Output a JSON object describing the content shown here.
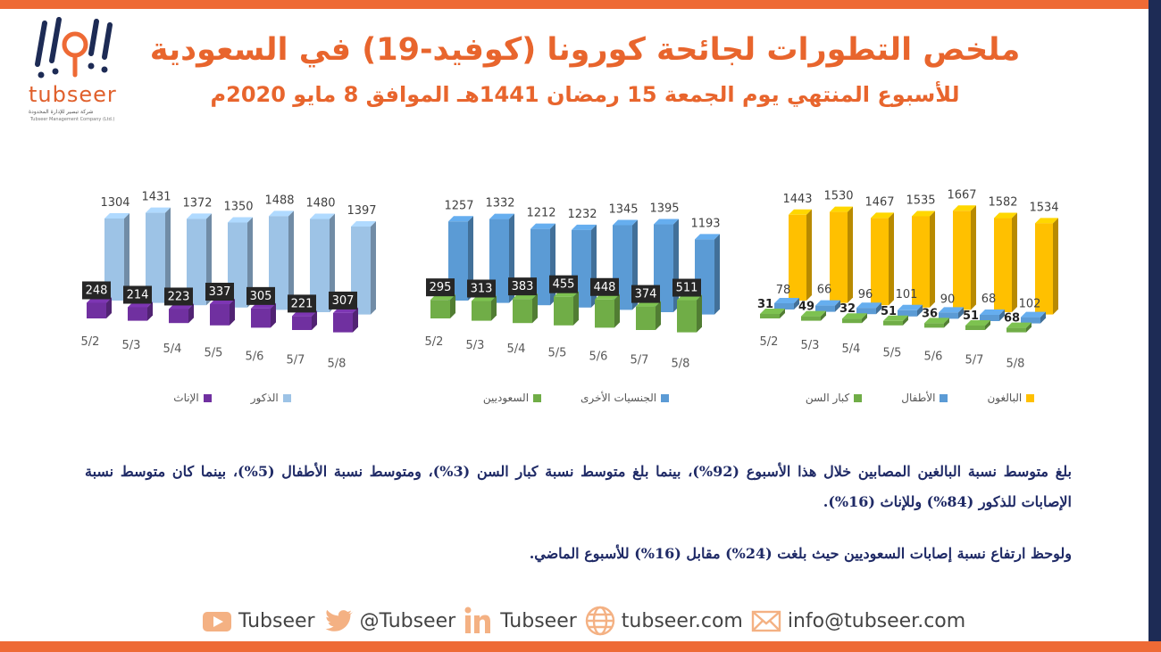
{
  "header": {
    "title": "ملخص التطورات لجائحة كورونا (كوفيد-19) في السعودية",
    "subtitle": "للأسبوع المنتهي يوم الجمعة 15 رمضان 1441هـ الموافق 8 مايو 2020م",
    "logo_text": "tubseer",
    "logo_sub_ar": "شركة تبصير للإدارة المحدودة",
    "logo_sub_en": "Tubseer Management Company (Ltd.)"
  },
  "colors": {
    "accent_orange": "#ee6a35",
    "navy": "#1d2b55",
    "purple": "#7030a0",
    "light_blue": "#9dc3e6",
    "green": "#70ad47",
    "mid_blue": "#5b9bd5",
    "yellow": "#ffc000"
  },
  "chart_data": [
    {
      "type": "bar",
      "categories": [
        "5/2",
        "5/3",
        "5/4",
        "5/5",
        "5/6",
        "5/7",
        "5/8"
      ],
      "series": [
        {
          "name": "الإناث",
          "color": "#7030a0",
          "values": [
            248,
            214,
            223,
            337,
            305,
            221,
            307
          ]
        },
        {
          "name": "الذكور",
          "color": "#9dc3e6",
          "values": [
            1304,
            1431,
            1372,
            1350,
            1488,
            1480,
            1397
          ]
        }
      ],
      "ylim": [
        0,
        1700
      ]
    },
    {
      "type": "bar",
      "categories": [
        "5/2",
        "5/3",
        "5/4",
        "5/5",
        "5/6",
        "5/7",
        "5/8"
      ],
      "series": [
        {
          "name": "السعوديين",
          "color": "#70ad47",
          "values": [
            295,
            313,
            383,
            455,
            448,
            374,
            511
          ]
        },
        {
          "name": "الجنسيات الأخرى",
          "color": "#5b9bd5",
          "values": [
            1257,
            1332,
            1212,
            1232,
            1345,
            1395,
            1193
          ]
        }
      ],
      "ylim": [
        0,
        1700
      ]
    },
    {
      "type": "bar",
      "categories": [
        "5/2",
        "5/3",
        "5/4",
        "5/5",
        "5/6",
        "5/7",
        "5/8"
      ],
      "series": [
        {
          "name": "كبار السن",
          "color": "#70ad47",
          "values": [
            31,
            49,
            32,
            51,
            36,
            51,
            68
          ]
        },
        {
          "name": "الأطفال",
          "color": "#5b9bd5",
          "values": [
            78,
            66,
            96,
            101,
            90,
            68,
            102
          ]
        },
        {
          "name": "البالغون",
          "color": "#ffc000",
          "values": [
            1443,
            1530,
            1467,
            1535,
            1667,
            1582,
            1534
          ]
        }
      ],
      "ylim": [
        0,
        1800
      ]
    }
  ],
  "body": {
    "para1": "بلغ متوسط نسبة البالغين المصابين خلال هذا الأسبوع (92%)، بينما بلغ متوسط نسبة كبار السن (3%)، ومتوسط نسبة الأطفال (5%)، بينما كان متوسط نسبة الإصابات للذكور (84%) وللإناث (16%).",
    "para2": "ولوحظ ارتفاع نسبة إصابات السعوديين حيث بلغت (24%) مقابل (16%) للأسبوع الماضي."
  },
  "footer": {
    "youtube": "Tubseer",
    "twitter": "@Tubseer",
    "linkedin": "Tubseer",
    "website": "tubseer.com",
    "email": "info@tubseer.com"
  }
}
